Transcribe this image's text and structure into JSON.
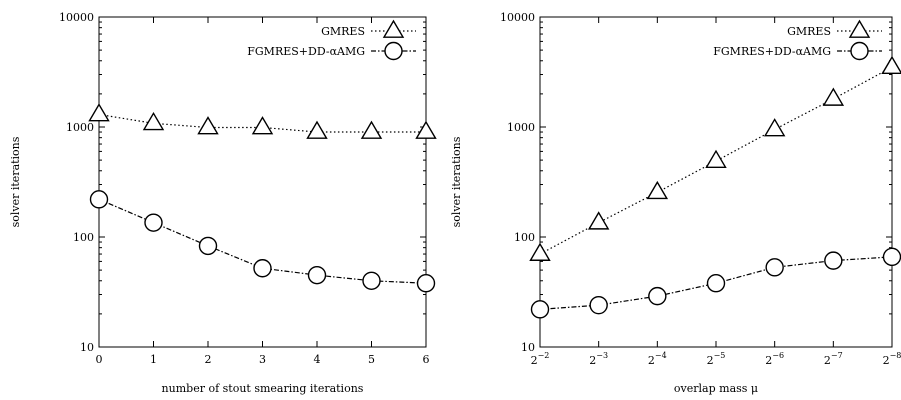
{
  "chart_data": [
    {
      "type": "line",
      "yscale": "log",
      "ylim": [
        10,
        10000
      ],
      "yticks": [
        10,
        100,
        1000,
        10000
      ],
      "ytick_labels": [
        "10",
        "100",
        "1000",
        "10000"
      ],
      "xlim": [
        0,
        6
      ],
      "x": [
        0,
        1,
        2,
        3,
        4,
        5,
        6
      ],
      "xtick_labels": [
        "0",
        "1",
        "2",
        "3",
        "4",
        "5",
        "6"
      ],
      "xlabel": "number of stout smearing iterations",
      "ylabel": "solver iterations",
      "legend_position": "top-right",
      "grid": false,
      "series": [
        {
          "name": "GMRES",
          "marker": "triangle",
          "values": [
            1300,
            1080,
            990,
            990,
            900,
            900,
            900
          ]
        },
        {
          "name": "FGMRES+DD-αAMG",
          "marker": "circle",
          "values": [
            220,
            135,
            83,
            52,
            45,
            40,
            38
          ]
        }
      ]
    },
    {
      "type": "line",
      "yscale": "log",
      "ylim": [
        10,
        10000
      ],
      "yticks": [
        10,
        100,
        1000,
        10000
      ],
      "ytick_labels": [
        "10",
        "100",
        "1000",
        "10000"
      ],
      "x_exponents": [
        -2,
        -3,
        -4,
        -5,
        -6,
        -7,
        -8
      ],
      "xtick_base": "2",
      "xlabel": "overlap mass μ",
      "ylabel": "solver iterations",
      "legend_position": "top-right",
      "grid": false,
      "series": [
        {
          "name": "GMRES",
          "marker": "triangle",
          "values": [
            70,
            135,
            255,
            490,
            950,
            1800,
            3500
          ]
        },
        {
          "name": "FGMRES+DD-αAMG",
          "marker": "circle",
          "values": [
            22,
            24,
            29,
            38,
            53,
            61,
            66
          ]
        }
      ]
    }
  ]
}
